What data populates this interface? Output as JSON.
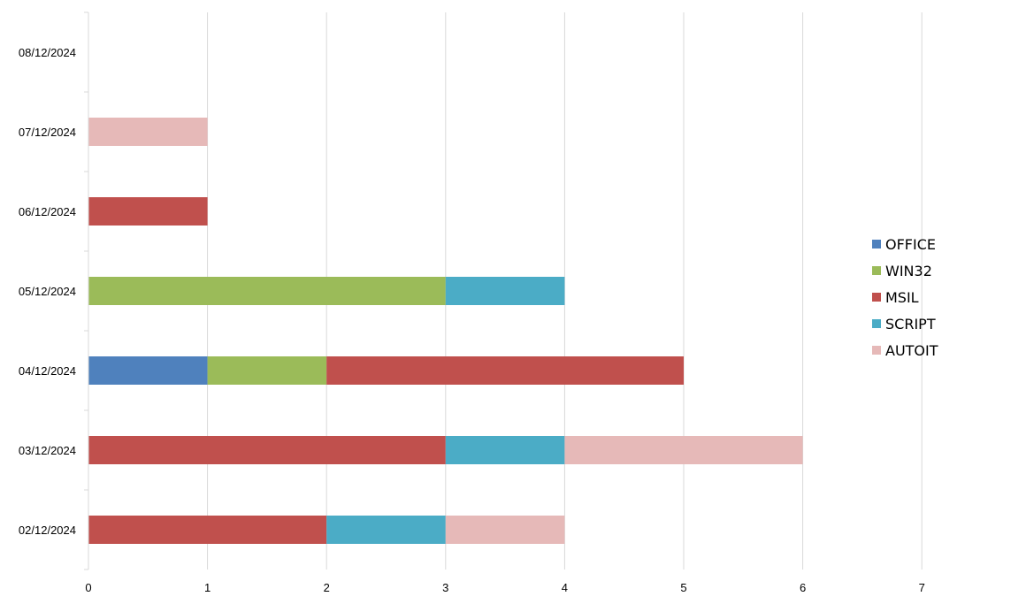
{
  "chart_data": {
    "type": "bar",
    "orientation": "horizontal",
    "stacked": true,
    "categories": [
      "02/12/2024",
      "03/12/2024",
      "04/12/2024",
      "05/12/2024",
      "06/12/2024",
      "07/12/2024",
      "08/12/2024"
    ],
    "series": [
      {
        "name": "OFFICE",
        "color": "#4f81bd",
        "values": [
          0,
          0,
          1,
          0,
          0,
          0,
          0
        ]
      },
      {
        "name": "WIN32",
        "color": "#9bbb59",
        "values": [
          0,
          0,
          1,
          3,
          0,
          0,
          0
        ]
      },
      {
        "name": "MSIL",
        "color": "#c0504d",
        "values": [
          2,
          3,
          3,
          0,
          1,
          0,
          0
        ]
      },
      {
        "name": "SCRIPT",
        "color": "#4bacc6",
        "values": [
          1,
          1,
          0,
          1,
          0,
          0,
          0
        ]
      },
      {
        "name": "AUTOIT",
        "color": "#e6b9b8",
        "values": [
          1,
          2,
          0,
          0,
          0,
          1,
          0
        ]
      }
    ],
    "xlim": [
      0,
      7
    ],
    "x_ticks": [
      "0",
      "1",
      "2",
      "3",
      "4",
      "5",
      "6",
      "7"
    ],
    "grid": true,
    "legend_position": "right",
    "title": "",
    "xlabel": "",
    "ylabel": ""
  }
}
